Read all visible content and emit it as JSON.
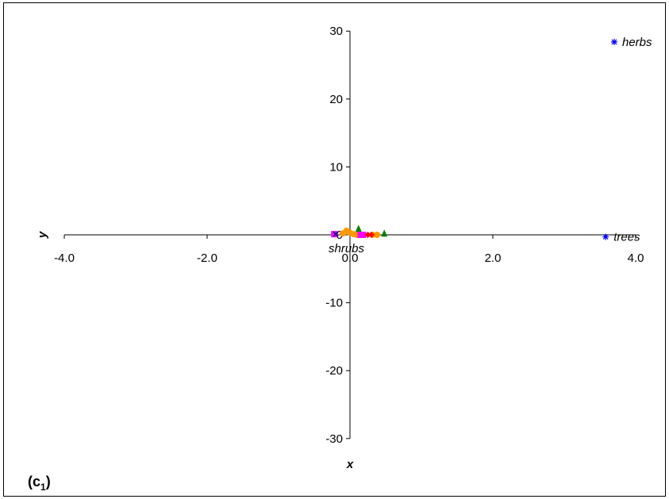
{
  "chart_data": {
    "type": "scatter",
    "panel_label": "(c",
    "panel_label_sub": "1",
    "panel_label_close": ")",
    "xlabel": "x",
    "ylabel": "y",
    "xlim": [
      -4.0,
      4.0
    ],
    "ylim": [
      -30,
      30
    ],
    "x_ticks": [
      -4.0,
      -2.0,
      0.0,
      2.0,
      4.0
    ],
    "x_tick_labels": [
      "-4.0",
      "-2.0",
      "0.0",
      "2.0",
      "4.0"
    ],
    "y_ticks": [
      -30,
      -20,
      -10,
      0,
      10,
      20,
      30
    ],
    "y_tick_labels": [
      "-30",
      "-20",
      "-10",
      "0",
      "10",
      "20",
      "30"
    ],
    "grid": false,
    "legend": "none",
    "series": [
      {
        "marker": "star",
        "color": "#0000ff",
        "points": [
          {
            "x": 3.7,
            "y": 28.4
          },
          {
            "x": 3.58,
            "y": -0.3
          }
        ]
      },
      {
        "marker": "circle",
        "color": "#ff9900",
        "points": [
          {
            "x": -0.05,
            "y": 0.6
          },
          {
            "x": 0.0,
            "y": 0.3
          },
          {
            "x": 0.05,
            "y": 0.1
          },
          {
            "x": 0.1,
            "y": 0.0
          },
          {
            "x": -0.1,
            "y": 0.2
          },
          {
            "x": 0.32,
            "y": 0.0
          },
          {
            "x": 0.38,
            "y": 0.0
          }
        ]
      },
      {
        "marker": "triangle",
        "color": "#008000",
        "points": [
          {
            "x": 0.12,
            "y": 0.9
          },
          {
            "x": 0.48,
            "y": 0.2
          }
        ]
      },
      {
        "marker": "square",
        "color": "#ff00ff",
        "points": [
          {
            "x": 0.15,
            "y": 0.0
          },
          {
            "x": 0.18,
            "y": 0.0
          },
          {
            "x": -0.22,
            "y": 0.1
          }
        ]
      },
      {
        "marker": "diamond",
        "color": "#ff0000",
        "points": [
          {
            "x": 0.25,
            "y": 0.0
          },
          {
            "x": 0.3,
            "y": 0.0
          }
        ]
      },
      {
        "marker": "x",
        "color": "#000080",
        "points": [
          {
            "x": -0.2,
            "y": 0.1
          }
        ]
      }
    ],
    "annotations": [
      {
        "text": "herbs",
        "x": 3.7,
        "y": 28.4,
        "anchor": "right"
      },
      {
        "text": "trees",
        "x": 3.58,
        "y": -0.3,
        "anchor": "right"
      },
      {
        "text": "shrubs",
        "x": -0.05,
        "y": 0.0,
        "anchor": "below"
      }
    ]
  }
}
